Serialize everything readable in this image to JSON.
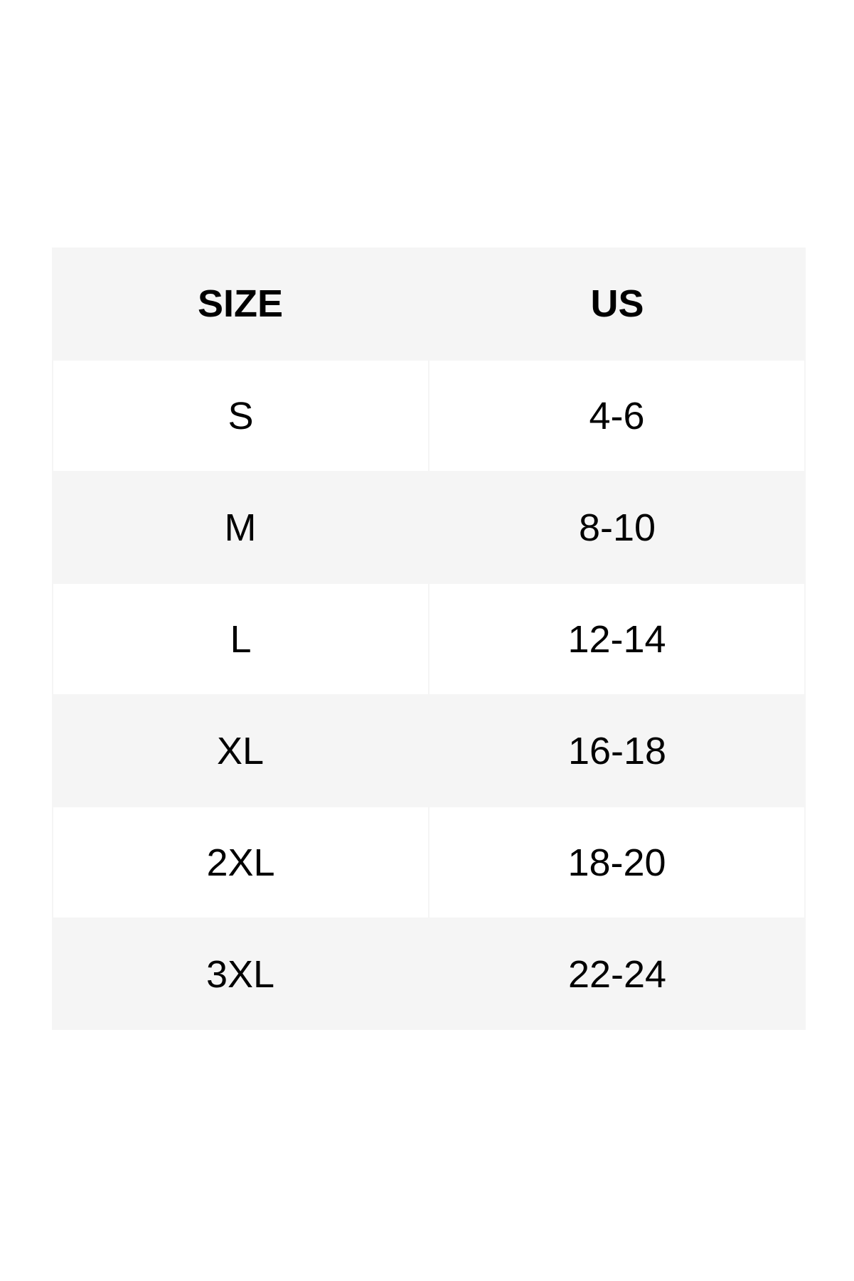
{
  "colors": {
    "header_bg": "#f5f5f5",
    "stripe_bg": "#f5f5f5",
    "row_bg": "#ffffff",
    "text": "#000000"
  },
  "table": {
    "headers": [
      "SIZE",
      "US"
    ],
    "rows": [
      [
        "S",
        "4-6"
      ],
      [
        "M",
        "8-10"
      ],
      [
        "L",
        "12-14"
      ],
      [
        "XL",
        "16-18"
      ],
      [
        "2XL",
        "18-20"
      ],
      [
        "3XL",
        "22-24"
      ]
    ]
  }
}
